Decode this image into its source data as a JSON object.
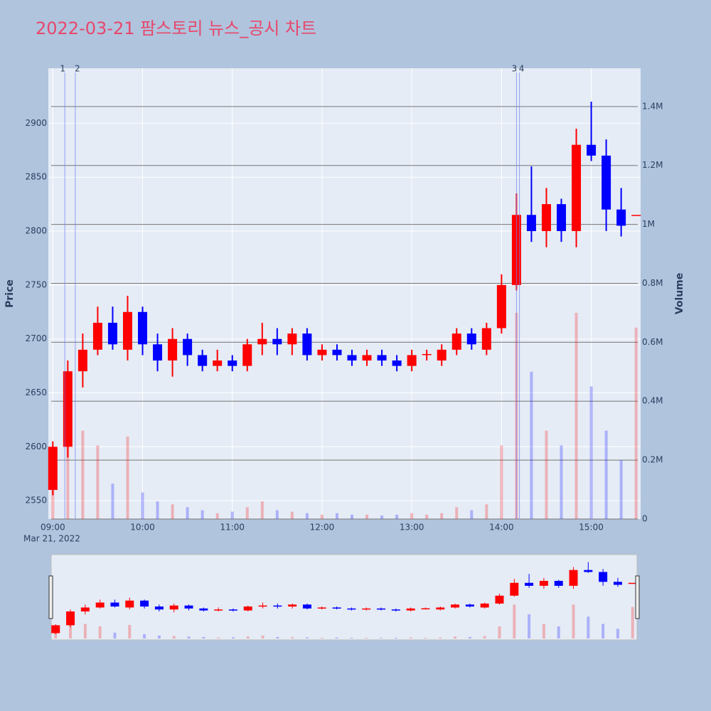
{
  "chart_data": {
    "type": "candlestick",
    "title": "2022-03-21 팜스토리 뉴스_공시 차트",
    "y_label": "Price",
    "y2_label": "Volume",
    "x_date_label": "Mar 21, 2022",
    "increasing_color": "#ff0000",
    "decreasing_color": "#0000ff",
    "x": [
      "2022-03-21 09:00",
      "2022-03-21 09:10",
      "2022-03-21 09:20",
      "2022-03-21 09:30",
      "2022-03-21 09:40",
      "2022-03-21 09:50",
      "2022-03-21 10:00",
      "2022-03-21 10:10",
      "2022-03-21 10:20",
      "2022-03-21 10:30",
      "2022-03-21 10:40",
      "2022-03-21 10:50",
      "2022-03-21 11:00",
      "2022-03-21 11:10",
      "2022-03-21 11:20",
      "2022-03-21 11:30",
      "2022-03-21 11:40",
      "2022-03-21 11:50",
      "2022-03-21 12:00",
      "2022-03-21 12:10",
      "2022-03-21 12:20",
      "2022-03-21 12:30",
      "2022-03-21 12:40",
      "2022-03-21 12:50",
      "2022-03-21 13:00",
      "2022-03-21 13:10",
      "2022-03-21 13:20",
      "2022-03-21 13:30",
      "2022-03-21 13:40",
      "2022-03-21 13:50",
      "2022-03-21 14:00",
      "2022-03-21 14:10",
      "2022-03-21 14:20",
      "2022-03-21 14:30",
      "2022-03-21 14:40",
      "2022-03-21 14:50",
      "2022-03-21 15:00",
      "2022-03-21 15:10",
      "2022-03-21 15:20",
      "2022-03-21 15:30"
    ],
    "open": [
      2560,
      2600,
      2670,
      2690,
      2715,
      2690,
      2725,
      2695,
      2680,
      2700,
      2685,
      2675,
      2680,
      2675,
      2695,
      2700,
      2695,
      2705,
      2685,
      2690,
      2685,
      2680,
      2685,
      2680,
      2675,
      2685,
      2680,
      2690,
      2705,
      2690,
      2710,
      2750,
      2815,
      2800,
      2825,
      2800,
      2880,
      2870,
      2820,
      2815
    ],
    "high": [
      2605,
      2680,
      2705,
      2730,
      2730,
      2740,
      2730,
      2705,
      2710,
      2705,
      2690,
      2690,
      2685,
      2700,
      2715,
      2710,
      2710,
      2710,
      2695,
      2695,
      2690,
      2690,
      2690,
      2685,
      2690,
      2690,
      2695,
      2710,
      2710,
      2715,
      2760,
      2835,
      2860,
      2840,
      2830,
      2895,
      2920,
      2885,
      2840,
      2815
    ],
    "low": [
      2555,
      2590,
      2655,
      2685,
      2690,
      2680,
      2685,
      2670,
      2665,
      2675,
      2670,
      2670,
      2670,
      2670,
      2685,
      2685,
      2685,
      2680,
      2680,
      2680,
      2675,
      2675,
      2675,
      2670,
      2670,
      2680,
      2675,
      2685,
      2690,
      2685,
      2705,
      2745,
      2790,
      2785,
      2790,
      2785,
      2865,
      2800,
      2795,
      2815
    ],
    "close": [
      2600,
      2670,
      2690,
      2715,
      2695,
      2725,
      2695,
      2680,
      2700,
      2685,
      2675,
      2680,
      2675,
      2695,
      2700,
      2695,
      2705,
      2685,
      2690,
      2685,
      2680,
      2685,
      2680,
      2675,
      2685,
      2686,
      2690,
      2705,
      2695,
      2710,
      2750,
      2815,
      2800,
      2825,
      2800,
      2880,
      2870,
      2820,
      2805,
      2815
    ],
    "volume": [
      120000,
      450000,
      300000,
      250000,
      120000,
      280000,
      90000,
      60000,
      50000,
      40000,
      30000,
      20000,
      25000,
      40000,
      60000,
      30000,
      25000,
      20000,
      15000,
      20000,
      15000,
      15000,
      12000,
      15000,
      20000,
      15000,
      20000,
      40000,
      30000,
      50000,
      250000,
      700000,
      500000,
      300000,
      250000,
      700000,
      450000,
      300000,
      200000,
      650000
    ],
    "annotations": [
      {
        "label": "1",
        "x": "2022-03-21 09:08"
      },
      {
        "label": "2",
        "x": "2022-03-21 09:15"
      },
      {
        "label": "3",
        "x": "2022-03-21 14:10"
      },
      {
        "label": "4",
        "x": "2022-03-21 14:12"
      }
    ],
    "xlim": [
      "2022-03-21 08:57",
      "2022-03-21 15:33"
    ],
    "xticks": [
      {
        "value": "2022-03-21 09:00",
        "label": "09:00"
      },
      {
        "value": "2022-03-21 10:00",
        "label": "10:00"
      },
      {
        "value": "2022-03-21 11:00",
        "label": "11:00"
      },
      {
        "value": "2022-03-21 12:00",
        "label": "12:00"
      },
      {
        "value": "2022-03-21 13:00",
        "label": "13:00"
      },
      {
        "value": "2022-03-21 14:00",
        "label": "14:00"
      },
      {
        "value": "2022-03-21 15:00",
        "label": "15:00"
      }
    ],
    "ylim": [
      2533,
      2951
    ],
    "yticks": [
      2550,
      2600,
      2650,
      2700,
      2750,
      2800,
      2850,
      2900
    ],
    "y2lim": [
      0,
      1530000
    ],
    "y2ticks": [
      0,
      {
        "value": 200000,
        "label": "0.2M"
      },
      {
        "value": 400000,
        "label": "0.4M"
      },
      {
        "value": 600000,
        "label": "0.6M"
      },
      {
        "value": 800000,
        "label": "0.8M"
      },
      {
        "value": 1000000,
        "label": "1M"
      },
      {
        "value": 1200000,
        "label": "1.2M"
      },
      {
        "value": 1400000,
        "label": "1.4M"
      }
    ],
    "grid": true
  }
}
